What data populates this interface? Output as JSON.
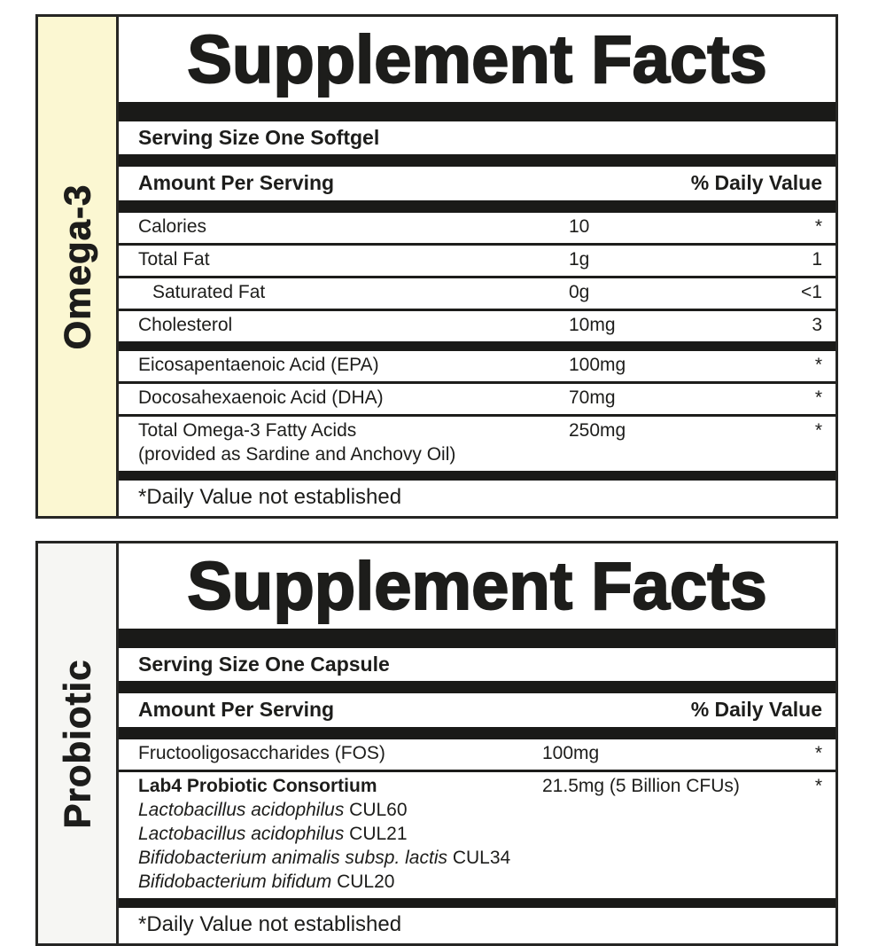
{
  "colors": {
    "ink": "#1d1d1b",
    "omega_side_bg": "#FBF7D2",
    "probiotic_side_bg": "#F6F6F3"
  },
  "panels": [
    {
      "id": "omega3",
      "side_label": "Omega-3",
      "title": "Supplement Facts",
      "serving": "Serving Size One Softgel",
      "col_header_left": "Amount Per Serving",
      "col_header_right": "% Daily Value",
      "rows": [
        {
          "name": "Calories",
          "amount": "10",
          "dv": "*"
        },
        {
          "name": "Total Fat",
          "amount": "1g",
          "dv": "1",
          "sep": "thin"
        },
        {
          "name": "Saturated Fat",
          "indent": true,
          "amount": "0g",
          "dv": "<1",
          "sep": "thin"
        },
        {
          "name": "Cholesterol",
          "amount": "10mg",
          "dv": "3",
          "sep": "thin"
        },
        {
          "name": "Eicosapentaenoic Acid (EPA)",
          "amount": "100mg",
          "dv": "*",
          "sep": "thick"
        },
        {
          "name": "Docosahexaenoic Acid (DHA)",
          "amount": "70mg",
          "dv": "*",
          "sep": "thin"
        },
        {
          "name": "Total Omega-3 Fatty Acids",
          "name2": "(provided as Sardine and Anchovy Oil)",
          "amount": "250mg",
          "dv": "*",
          "sep": "thin"
        }
      ],
      "footnote": "*Daily Value not established"
    },
    {
      "id": "probiotic",
      "side_label": "Probiotic",
      "title": "Supplement Facts",
      "serving": "Serving Size One Capsule",
      "col_header_left": "Amount Per Serving",
      "col_header_right": "% Daily Value",
      "rows": [
        {
          "name": "Fructooligosaccharides (FOS)",
          "amount": "100mg",
          "dv": "*"
        },
        {
          "name": "Lab4 Probiotic Consortium",
          "bold": true,
          "amount": "21.5mg (5 Billion CFUs)",
          "dv": "*",
          "sep": "thin",
          "sub_lines": [
            {
              "italic": "Lactobacillus acidophilus",
              "regular": " CUL60"
            },
            {
              "italic": "Lactobacillus acidophilus",
              "regular": " CUL21"
            },
            {
              "italic": "Bifidobacterium animalis subsp. lactis",
              "regular": " CUL34"
            },
            {
              "italic": "Bifidobacterium bifidum",
              "regular": " CUL20"
            }
          ]
        }
      ],
      "footnote": "*Daily Value not established"
    }
  ]
}
